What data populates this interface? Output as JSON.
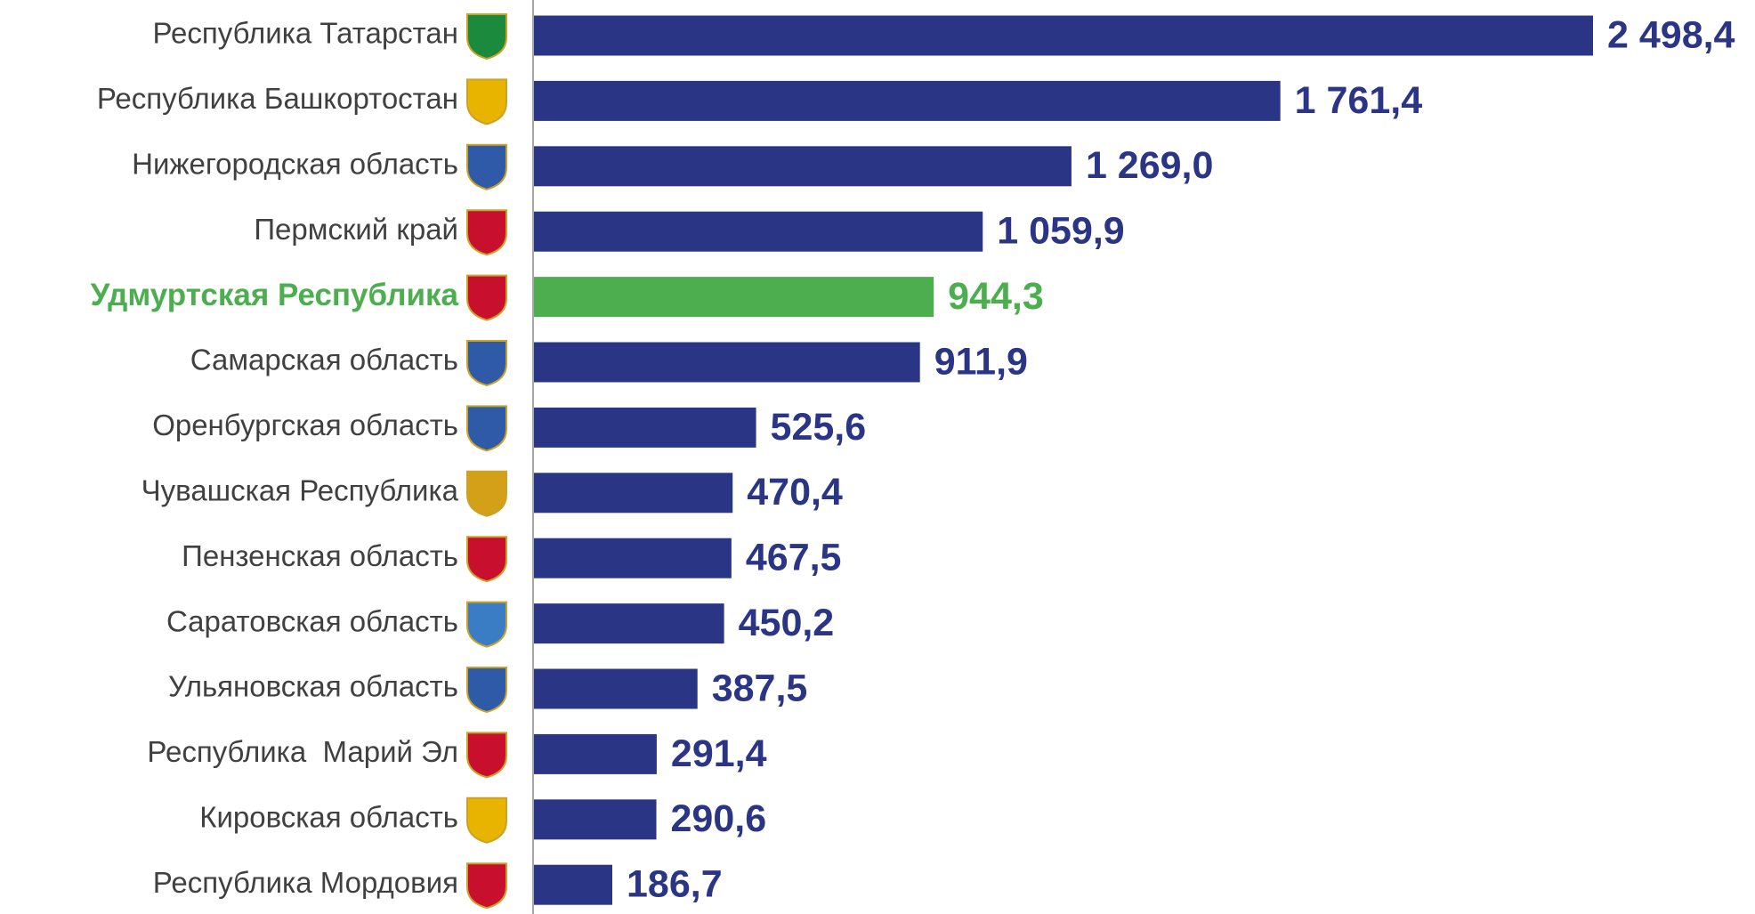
{
  "chart_data": {
    "type": "bar",
    "orientation": "horizontal",
    "categories": [
      "Республика Татарстан",
      "Республика Башкортостан",
      "Нижегородская область",
      "Пермский край",
      "Удмуртская Республика",
      "Самарская область",
      "Оренбургская область",
      "Чувашская Республика",
      "Пензенская область",
      "Саратовская область",
      "Ульяновская область",
      "Республика  Марий Эл",
      "Кировская область",
      "Республика Мордовия"
    ],
    "values": [
      2498.4,
      1761.4,
      1269.0,
      1059.9,
      944.3,
      911.9,
      525.6,
      470.4,
      467.5,
      450.2,
      387.5,
      291.4,
      290.6,
      186.7
    ],
    "value_labels": [
      "2 498,4",
      "1 761,4",
      "1 269,0",
      "1 059,9",
      "944,3",
      "911,9",
      "525,6",
      "470,4",
      "467,5",
      "450,2",
      "387,5",
      "291,4",
      "290,6",
      "186,7"
    ],
    "color": "#2b3585",
    "colors": [
      "#2b3585",
      "#2b3585",
      "#2b3585",
      "#2b3585",
      "#4cae4f",
      "#2b3585",
      "#2b3585",
      "#2b3585",
      "#2b3585",
      "#2b3585",
      "#2b3585",
      "#2b3585",
      "#2b3585",
      "#2b3585"
    ]
  }
}
